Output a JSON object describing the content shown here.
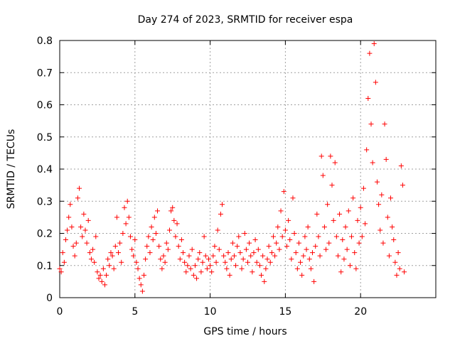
{
  "chart_data": {
    "type": "scatter",
    "title": "Day 274 of 2023, SRMTID for receiver espa",
    "xlabel": "GPS time / hours",
    "ylabel": "SRMTID / TECUs",
    "xlim": [
      0,
      25
    ],
    "ylim": [
      0,
      0.8
    ],
    "xticks": [
      0,
      5,
      10,
      15,
      20
    ],
    "yticks": [
      0,
      0.1,
      0.2,
      0.3,
      0.4,
      0.5,
      0.6,
      0.7,
      0.8
    ],
    "xtick_labels": [
      "0",
      "5",
      "10",
      "15",
      "20"
    ],
    "ytick_labels": [
      "0",
      "0.1",
      "0.2",
      "0.3",
      "0.4",
      "0.5",
      "0.6",
      "0.7",
      "0.8"
    ],
    "grid": true,
    "marker": "+",
    "color": "#ff0000",
    "series": [
      {
        "name": "SRMTID",
        "points": [
          [
            0.0,
            0.09
          ],
          [
            0.1,
            0.08
          ],
          [
            0.2,
            0.14
          ],
          [
            0.3,
            0.11
          ],
          [
            0.4,
            0.18
          ],
          [
            0.5,
            0.21
          ],
          [
            0.6,
            0.25
          ],
          [
            0.7,
            0.29
          ],
          [
            0.8,
            0.22
          ],
          [
            0.9,
            0.16
          ],
          [
            1.0,
            0.13
          ],
          [
            1.1,
            0.17
          ],
          [
            1.2,
            0.31
          ],
          [
            1.3,
            0.34
          ],
          [
            1.4,
            0.22
          ],
          [
            1.5,
            0.19
          ],
          [
            1.6,
            0.26
          ],
          [
            1.7,
            0.21
          ],
          [
            1.8,
            0.17
          ],
          [
            1.9,
            0.24
          ],
          [
            2.0,
            0.14
          ],
          [
            2.1,
            0.12
          ],
          [
            2.2,
            0.15
          ],
          [
            2.3,
            0.11
          ],
          [
            2.4,
            0.19
          ],
          [
            2.5,
            0.08
          ],
          [
            2.6,
            0.06
          ],
          [
            2.7,
            0.07
          ],
          [
            2.8,
            0.05
          ],
          [
            2.9,
            0.09
          ],
          [
            3.0,
            0.04
          ],
          [
            3.1,
            0.07
          ],
          [
            3.2,
            0.12
          ],
          [
            3.3,
            0.1
          ],
          [
            3.4,
            0.14
          ],
          [
            3.5,
            0.13
          ],
          [
            3.6,
            0.09
          ],
          [
            3.7,
            0.16
          ],
          [
            3.8,
            0.25
          ],
          [
            3.9,
            0.14
          ],
          [
            4.0,
            0.17
          ],
          [
            4.1,
            0.11
          ],
          [
            4.2,
            0.2
          ],
          [
            4.3,
            0.28
          ],
          [
            4.4,
            0.23
          ],
          [
            4.5,
            0.3
          ],
          [
            4.6,
            0.25
          ],
          [
            4.7,
            0.19
          ],
          [
            4.8,
            0.15
          ],
          [
            4.9,
            0.13
          ],
          [
            5.0,
            0.18
          ],
          [
            5.1,
            0.11
          ],
          [
            5.2,
            0.09
          ],
          [
            5.3,
            0.06
          ],
          [
            5.4,
            0.04
          ],
          [
            5.5,
            0.02
          ],
          [
            5.6,
            0.07
          ],
          [
            5.7,
            0.12
          ],
          [
            5.8,
            0.16
          ],
          [
            5.9,
            0.19
          ],
          [
            6.0,
            0.14
          ],
          [
            6.1,
            0.22
          ],
          [
            6.2,
            0.18
          ],
          [
            6.3,
            0.25
          ],
          [
            6.4,
            0.2
          ],
          [
            6.5,
            0.27
          ],
          [
            6.6,
            0.16
          ],
          [
            6.7,
            0.12
          ],
          [
            6.8,
            0.09
          ],
          [
            6.9,
            0.13
          ],
          [
            7.0,
            0.11
          ],
          [
            7.1,
            0.17
          ],
          [
            7.2,
            0.15
          ],
          [
            7.3,
            0.21
          ],
          [
            7.4,
            0.27
          ],
          [
            7.5,
            0.28
          ],
          [
            7.6,
            0.24
          ],
          [
            7.7,
            0.19
          ],
          [
            7.8,
            0.23
          ],
          [
            7.9,
            0.16
          ],
          [
            8.0,
            0.12
          ],
          [
            8.1,
            0.18
          ],
          [
            8.2,
            0.14
          ],
          [
            8.3,
            0.11
          ],
          [
            8.4,
            0.08
          ],
          [
            8.5,
            0.1
          ],
          [
            8.6,
            0.13
          ],
          [
            8.7,
            0.09
          ],
          [
            8.8,
            0.15
          ],
          [
            8.9,
            0.07
          ],
          [
            9.0,
            0.1
          ],
          [
            9.1,
            0.06
          ],
          [
            9.2,
            0.12
          ],
          [
            9.3,
            0.14
          ],
          [
            9.4,
            0.08
          ],
          [
            9.5,
            0.11
          ],
          [
            9.6,
            0.19
          ],
          [
            9.7,
            0.13
          ],
          [
            9.8,
            0.09
          ],
          [
            9.9,
            0.12
          ],
          [
            10.0,
            0.1
          ],
          [
            10.1,
            0.08
          ],
          [
            10.2,
            0.13
          ],
          [
            10.3,
            0.16
          ],
          [
            10.4,
            0.11
          ],
          [
            10.5,
            0.21
          ],
          [
            10.6,
            0.15
          ],
          [
            10.7,
            0.26
          ],
          [
            10.8,
            0.29
          ],
          [
            10.9,
            0.13
          ],
          [
            11.0,
            0.11
          ],
          [
            11.1,
            0.09
          ],
          [
            11.2,
            0.14
          ],
          [
            11.3,
            0.07
          ],
          [
            11.4,
            0.12
          ],
          [
            11.5,
            0.17
          ],
          [
            11.6,
            0.13
          ],
          [
            11.7,
            0.1
          ],
          [
            11.8,
            0.16
          ],
          [
            11.9,
            0.19
          ],
          [
            12.0,
            0.14
          ],
          [
            12.1,
            0.09
          ],
          [
            12.2,
            0.12
          ],
          [
            12.3,
            0.2
          ],
          [
            12.4,
            0.15
          ],
          [
            12.5,
            0.11
          ],
          [
            12.6,
            0.17
          ],
          [
            12.7,
            0.13
          ],
          [
            12.8,
            0.08
          ],
          [
            12.9,
            0.14
          ],
          [
            13.0,
            0.18
          ],
          [
            13.1,
            0.11
          ],
          [
            13.2,
            0.15
          ],
          [
            13.3,
            0.1
          ],
          [
            13.4,
            0.07
          ],
          [
            13.5,
            0.13
          ],
          [
            13.6,
            0.05
          ],
          [
            13.7,
            0.09
          ],
          [
            13.8,
            0.12
          ],
          [
            13.9,
            0.16
          ],
          [
            14.0,
            0.11
          ],
          [
            14.1,
            0.14
          ],
          [
            14.2,
            0.19
          ],
          [
            14.3,
            0.13
          ],
          [
            14.4,
            0.17
          ],
          [
            14.5,
            0.22
          ],
          [
            14.6,
            0.15
          ],
          [
            14.7,
            0.27
          ],
          [
            14.8,
            0.19
          ],
          [
            14.9,
            0.33
          ],
          [
            15.0,
            0.21
          ],
          [
            15.1,
            0.16
          ],
          [
            15.2,
            0.24
          ],
          [
            15.3,
            0.18
          ],
          [
            15.4,
            0.12
          ],
          [
            15.5,
            0.31
          ],
          [
            15.6,
            0.2
          ],
          [
            15.7,
            0.14
          ],
          [
            15.8,
            0.09
          ],
          [
            15.9,
            0.17
          ],
          [
            16.0,
            0.11
          ],
          [
            16.1,
            0.07
          ],
          [
            16.2,
            0.13
          ],
          [
            16.3,
            0.19
          ],
          [
            16.4,
            0.15
          ],
          [
            16.5,
            0.22
          ],
          [
            16.6,
            0.12
          ],
          [
            16.7,
            0.09
          ],
          [
            16.8,
            0.14
          ],
          [
            16.9,
            0.05
          ],
          [
            17.0,
            0.16
          ],
          [
            17.1,
            0.26
          ],
          [
            17.2,
            0.19
          ],
          [
            17.3,
            0.13
          ],
          [
            17.4,
            0.44
          ],
          [
            17.5,
            0.38
          ],
          [
            17.6,
            0.22
          ],
          [
            17.7,
            0.15
          ],
          [
            17.8,
            0.29
          ],
          [
            17.9,
            0.17
          ],
          [
            18.0,
            0.44
          ],
          [
            18.1,
            0.35
          ],
          [
            18.2,
            0.24
          ],
          [
            18.3,
            0.42
          ],
          [
            18.4,
            0.19
          ],
          [
            18.5,
            0.13
          ],
          [
            18.6,
            0.26
          ],
          [
            18.7,
            0.08
          ],
          [
            18.8,
            0.18
          ],
          [
            18.9,
            0.12
          ],
          [
            19.0,
            0.22
          ],
          [
            19.1,
            0.15
          ],
          [
            19.2,
            0.27
          ],
          [
            19.3,
            0.1
          ],
          [
            19.4,
            0.19
          ],
          [
            19.5,
            0.31
          ],
          [
            19.6,
            0.14
          ],
          [
            19.7,
            0.09
          ],
          [
            19.8,
            0.24
          ],
          [
            19.9,
            0.17
          ],
          [
            20.0,
            0.28
          ],
          [
            20.1,
            0.19
          ],
          [
            20.2,
            0.34
          ],
          [
            20.3,
            0.23
          ],
          [
            20.4,
            0.46
          ],
          [
            20.5,
            0.62
          ],
          [
            20.6,
            0.76
          ],
          [
            20.7,
            0.54
          ],
          [
            20.8,
            0.42
          ],
          [
            20.9,
            0.79
          ],
          [
            21.0,
            0.67
          ],
          [
            21.1,
            0.36
          ],
          [
            21.2,
            0.29
          ],
          [
            21.3,
            0.21
          ],
          [
            21.4,
            0.32
          ],
          [
            21.5,
            0.17
          ],
          [
            21.6,
            0.54
          ],
          [
            21.7,
            0.43
          ],
          [
            21.8,
            0.25
          ],
          [
            21.9,
            0.13
          ],
          [
            22.0,
            0.31
          ],
          [
            22.1,
            0.22
          ],
          [
            22.2,
            0.18
          ],
          [
            22.3,
            0.11
          ],
          [
            22.4,
            0.07
          ],
          [
            22.5,
            0.14
          ],
          [
            22.6,
            0.09
          ],
          [
            22.7,
            0.41
          ],
          [
            22.8,
            0.35
          ],
          [
            22.9,
            0.08
          ]
        ]
      }
    ]
  }
}
